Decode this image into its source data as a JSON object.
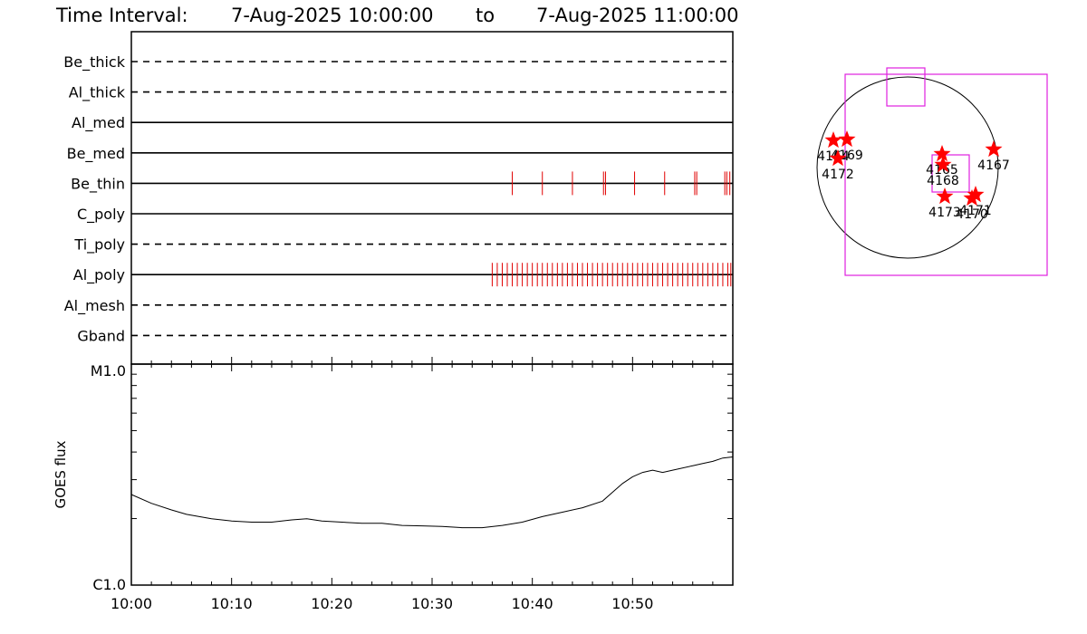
{
  "title": {
    "prefix": "Time Interval:",
    "start": "7-Aug-2025 10:00:00",
    "connector": "to",
    "end": "7-Aug-2025 11:00:00"
  },
  "colors": {
    "axes": "#000000",
    "exposure_marks": "#e00000",
    "fov_boxes": "#e020e0",
    "stars": "#ff0000"
  },
  "chart_data": [
    {
      "type": "timeline",
      "name": "filter_exposures",
      "x_unit": "minutes after 10:00",
      "x_range": [
        0,
        60
      ],
      "rows": [
        {
          "label": "Be_thick",
          "style": "dashed",
          "exposures": []
        },
        {
          "label": "Al_thick",
          "style": "dashed",
          "exposures": []
        },
        {
          "label": "Al_med",
          "style": "solid",
          "exposures": []
        },
        {
          "label": "Be_med",
          "style": "solid",
          "exposures": []
        },
        {
          "label": "Be_thin",
          "style": "solid",
          "exposures": [
            38.0,
            41.0,
            44.0,
            47.1,
            47.3,
            50.2,
            53.2,
            56.2,
            56.4,
            59.2,
            59.4,
            59.7
          ]
        },
        {
          "label": "C_poly",
          "style": "solid",
          "exposures": []
        },
        {
          "label": "Ti_poly",
          "style": "dashed",
          "exposures": []
        },
        {
          "label": "Al_poly",
          "style": "solid",
          "exposures_range": {
            "start": 36.0,
            "end": 60.0,
            "step": 0.5
          }
        },
        {
          "label": "Al_mesh",
          "style": "dashed",
          "exposures": []
        },
        {
          "label": "Gband",
          "style": "dashed",
          "exposures": []
        }
      ]
    },
    {
      "type": "line",
      "name": "goes_flux",
      "ylabel": "GOES flux",
      "yscale": "log",
      "ylim_labels": [
        "C1.0",
        "M1.0"
      ],
      "x_ticklabels": [
        "10:00",
        "10:10",
        "10:20",
        "10:30",
        "10:40",
        "10:50"
      ],
      "x_range": [
        0,
        60
      ],
      "points": [
        [
          0,
          0.41
        ],
        [
          2,
          0.37
        ],
        [
          4,
          0.34
        ],
        [
          5.5,
          0.32
        ],
        [
          8,
          0.3
        ],
        [
          10,
          0.29
        ],
        [
          12,
          0.285
        ],
        [
          14,
          0.285
        ],
        [
          16,
          0.295
        ],
        [
          17.5,
          0.3
        ],
        [
          19,
          0.29
        ],
        [
          21,
          0.285
        ],
        [
          23,
          0.28
        ],
        [
          25,
          0.28
        ],
        [
          27,
          0.27
        ],
        [
          29,
          0.268
        ],
        [
          31,
          0.265
        ],
        [
          33,
          0.26
        ],
        [
          35,
          0.26
        ],
        [
          37,
          0.27
        ],
        [
          39,
          0.285
        ],
        [
          41,
          0.31
        ],
        [
          43,
          0.33
        ],
        [
          45,
          0.35
        ],
        [
          47,
          0.38
        ],
        [
          48,
          0.42
        ],
        [
          49,
          0.46
        ],
        [
          50,
          0.49
        ],
        [
          51,
          0.51
        ],
        [
          52,
          0.52
        ],
        [
          53,
          0.51
        ],
        [
          54,
          0.52
        ],
        [
          56,
          0.54
        ],
        [
          57,
          0.55
        ],
        [
          58,
          0.56
        ],
        [
          59,
          0.575
        ],
        [
          60,
          0.58
        ]
      ]
    },
    {
      "type": "scatter",
      "name": "solar_disk_map",
      "active_regions": [
        {
          "label": "4164",
          "x": -0.82,
          "y": 0.3
        },
        {
          "label": "4169",
          "x": -0.67,
          "y": 0.31
        },
        {
          "label": "4172",
          "x": -0.77,
          "y": 0.1
        },
        {
          "label": "4165",
          "x": 0.38,
          "y": 0.15
        },
        {
          "label": "4168",
          "x": 0.39,
          "y": 0.03
        },
        {
          "label": "4167",
          "x": 0.95,
          "y": 0.2
        },
        {
          "label": "4173",
          "x": 0.41,
          "y": -0.32
        },
        {
          "label": "4171",
          "x": 0.75,
          "y": -0.3
        },
        {
          "label": "4170",
          "x": 0.71,
          "y": -0.34
        }
      ]
    }
  ]
}
